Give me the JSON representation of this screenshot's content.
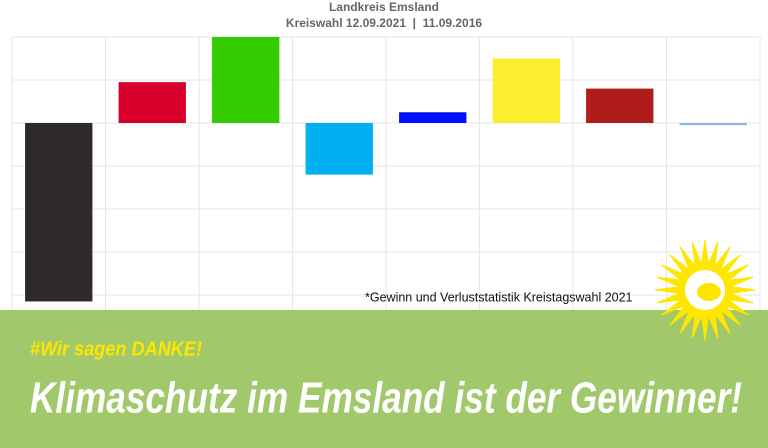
{
  "chart_data": {
    "type": "bar",
    "title": "Landkreis Emsland",
    "subtitle": "Kreiswahl 12.09.2021  |  11.09.2016",
    "categories": [
      null,
      null,
      null,
      null,
      null,
      null,
      null,
      null
    ],
    "values": [
      -4.15,
      0.95,
      2.0,
      -1.2,
      0.25,
      1.5,
      0.8,
      -0.05
    ],
    "colors": [
      "#2d2a29",
      "#d6002a",
      "#33cc00",
      "#00b0f0",
      "#0010ff",
      "#fced2e",
      "#b01c1c",
      "#8ab4f0"
    ],
    "ylim": [
      -4.5,
      2
    ],
    "yticks": [
      -4,
      -3,
      -2,
      -1,
      0,
      1,
      2
    ],
    "grid": true,
    "footnote": "*Gewinn und Verluststatistik Kreistagswahl 2021"
  },
  "banner": {
    "hashtag": "#Wir sagen DANKE!",
    "headline": "Klimaschutz im Emsland ist der Gewinner!"
  }
}
